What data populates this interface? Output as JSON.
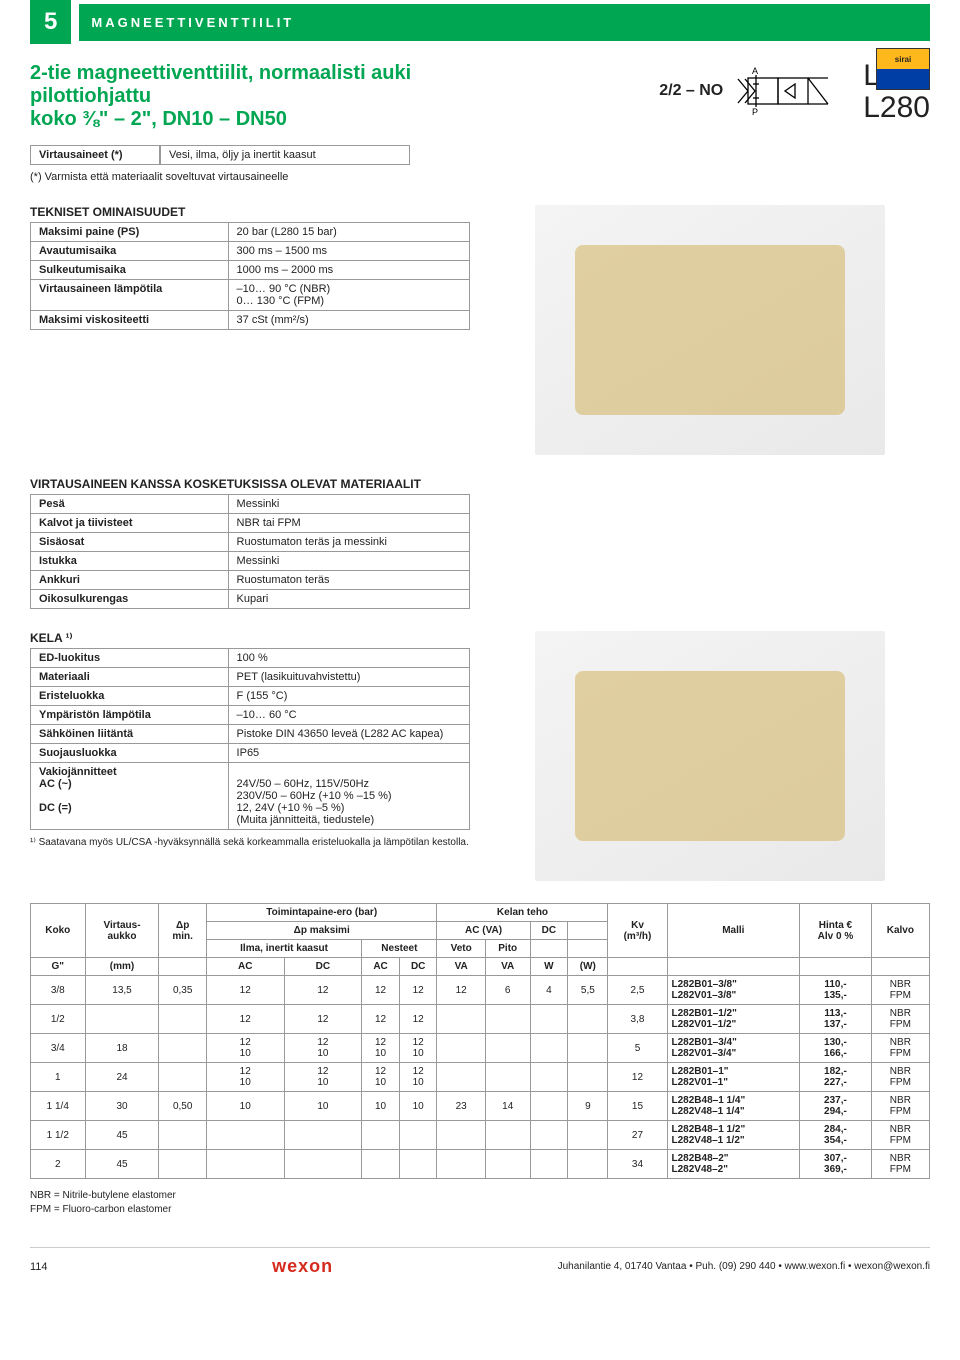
{
  "header": {
    "section_number": "5",
    "section_title": "MAGNEETTIVENTTIILIT",
    "title_line1": "2-tie magneettiventtiilit, normaalisti auki",
    "title_line2": "pilottiohjattu",
    "title_line3": "koko ⅜\" – 2\", DN10 – DN50",
    "symbol_code": "2/2 – NO",
    "symbol_top": "A",
    "symbol_bottom": "P",
    "model1": "L282",
    "model2": "L280",
    "logo_text": "sirai"
  },
  "media_row": {
    "label": "Virtausaineet (*)",
    "value": "Vesi, ilma, öljy ja inertit kaasut",
    "note": "(*) Varmista että materiaalit soveltuvat virtausaineelle"
  },
  "tech": {
    "heading": "TEKNISET OMINAISUUDET",
    "rows": [
      [
        "Maksimi paine (PS)",
        "20 bar (L280 15 bar)"
      ],
      [
        "Avautumisaika",
        "300 ms – 1500 ms"
      ],
      [
        "Sulkeutumisaika",
        "1000 ms – 2000 ms"
      ],
      [
        "Virtausaineen lämpötila",
        "–10… 90 °C (NBR)\n0… 130 °C (FPM)"
      ],
      [
        "Maksimi viskositeetti",
        "37 cSt (mm²/s)"
      ]
    ]
  },
  "materials": {
    "heading": "VIRTAUSAINEEN KANSSA KOSKETUKSISSA OLEVAT MATERIAALIT",
    "rows": [
      [
        "Pesä",
        "Messinki"
      ],
      [
        "Kalvot ja tiivisteet",
        "NBR tai FPM"
      ],
      [
        "Sisäosat",
        "Ruostumaton teräs ja messinki"
      ],
      [
        "Istukka",
        "Messinki"
      ],
      [
        "Ankkuri",
        "Ruostumaton teräs"
      ],
      [
        "Oikosulkurengas",
        "Kupari"
      ]
    ]
  },
  "coil": {
    "heading": "KELA ¹⁾",
    "rows": [
      [
        "ED-luokitus",
        "100 %"
      ],
      [
        "Materiaali",
        "PET (lasikuituvahvistettu)"
      ],
      [
        "Eristeluokka",
        "F (155 °C)"
      ],
      [
        "Ympäristön lämpötila",
        "–10… 60 °C"
      ],
      [
        "Sähköinen liitäntä",
        "Pistoke DIN 43650 leveä (L282 AC kapea)"
      ],
      [
        "Suojausluokka",
        "IP65"
      ],
      [
        "Vakiojännitteet\n            AC (~)\n\n            DC (=)",
        "\n24V/50 – 60Hz, 115V/50Hz\n230V/50 – 60Hz (+10 % –15 %)\n12, 24V (+10 % –5 %)\n(Muita jännitteitä, tiedustele)"
      ]
    ],
    "footnote": "¹⁾  Saatavana myös UL/CSA -hyväksynnällä sekä korkeammalla eristeluokalla ja lämpötilan kestolla."
  },
  "big_table": {
    "top_headers": {
      "koko": "Koko",
      "virtaus": "Virtaus-\naukko",
      "dp": "Δp\nmin.",
      "toiminta": "Toimintapaine-ero (bar)",
      "dpmax": "Δp maksimi",
      "ilma": "Ilma, inertit kaasut",
      "nesteet": "Nesteet",
      "kelan": "Kelan teho",
      "acva": "AC (VA)",
      "veto": "Veto",
      "pito": "Pito",
      "dc": "DC",
      "kv": "Kv\n(m³/h)",
      "malli": "Malli",
      "hinta": "Hinta €\nAlv 0 %",
      "kalvo": "Kalvo",
      "g": "G\"",
      "mm": "(mm)",
      "ac": "AC",
      "dc2": "DC",
      "va": "VA",
      "w": "W",
      "wcol": "(W)"
    },
    "rows": [
      {
        "g": "3/8",
        "mm": "13,5",
        "dp": "0,35",
        "a1": "12",
        "d1": "12",
        "a2": "12",
        "d2": "12",
        "va": "12",
        "vb": "6",
        "wv": "4",
        "dcw": "5,5",
        "kv": "2,5",
        "m1": "L282B01–3/8\"",
        "p1": "110,-",
        "k1": "NBR",
        "m2": "L282V01–3/8\"",
        "p2": "135,-",
        "k2": "FPM"
      },
      {
        "g": "1/2",
        "mm": "",
        "dp": "",
        "a1": "12",
        "d1": "12",
        "a2": "12",
        "d2": "12",
        "va": "",
        "vb": "",
        "wv": "",
        "dcw": "",
        "kv": "3,8",
        "m1": "L282B01–1/2\"",
        "p1": "113,-",
        "k1": "NBR",
        "m2": "L282V01–1/2\"",
        "p2": "137,-",
        "k2": "FPM"
      },
      {
        "g": "3/4",
        "mm": "18",
        "dp": "",
        "a1": "12\n10",
        "d1": "12\n10",
        "a2": "12\n10",
        "d2": "12\n10",
        "va": "",
        "vb": "",
        "wv": "",
        "dcw": "",
        "kv": "5",
        "m1": "L282B01–3/4\"",
        "p1": "130,-",
        "k1": "NBR",
        "m2": "L282V01–3/4\"",
        "p2": "166,-",
        "k2": "FPM"
      },
      {
        "g": "1",
        "mm": "24",
        "dp": "",
        "a1": "12\n10",
        "d1": "12\n10",
        "a2": "12\n10",
        "d2": "12\n10",
        "va": "",
        "vb": "",
        "wv": "",
        "dcw": "",
        "kv": "12",
        "m1": "L282B01–1\"",
        "p1": "182,-",
        "k1": "NBR",
        "m2": "L282V01–1\"",
        "p2": "227,-",
        "k2": "FPM"
      },
      {
        "g": "1 1/4",
        "mm": "30",
        "dp": "0,50",
        "a1": "10",
        "d1": "10",
        "a2": "10",
        "d2": "10",
        "va": "23",
        "vb": "14",
        "wv": "",
        "dcw": "9",
        "kv": "15",
        "m1": "L282B48–1 1/4\"",
        "p1": "237,-",
        "k1": "NBR",
        "m2": "L282V48–1 1/4\"",
        "p2": "294,-",
        "k2": "FPM"
      },
      {
        "g": "1 1/2",
        "mm": "45",
        "dp": "",
        "a1": "",
        "d1": "",
        "a2": "",
        "d2": "",
        "va": "",
        "vb": "",
        "wv": "",
        "dcw": "",
        "kv": "27",
        "m1": "L282B48–1 1/2\"",
        "p1": "284,-",
        "k1": "NBR",
        "m2": "L282V48–1 1/2\"",
        "p2": "354,-",
        "k2": "FPM"
      },
      {
        "g": "2",
        "mm": "45",
        "dp": "",
        "a1": "",
        "d1": "",
        "a2": "",
        "d2": "",
        "va": "",
        "vb": "",
        "wv": "",
        "dcw": "",
        "kv": "34",
        "m1": "L282B48–2\"",
        "p1": "307,-",
        "k1": "NBR",
        "m2": "L282V48–2\"",
        "p2": "369,-",
        "k2": "FPM"
      }
    ],
    "abbrev1": "NBR = Nitrile-butylene elastomer",
    "abbrev2": "FPM = Fluoro-carbon elastomer"
  },
  "footer": {
    "page": "114",
    "brand": "wexon",
    "contact": "Juhanilantie 4, 01740 Vantaa • Puh. (09) 290 440 • www.wexon.fi • wexon@wexon.fi"
  },
  "colors": {
    "green": "#00a651",
    "border": "#999",
    "red": "#d52b1e"
  }
}
